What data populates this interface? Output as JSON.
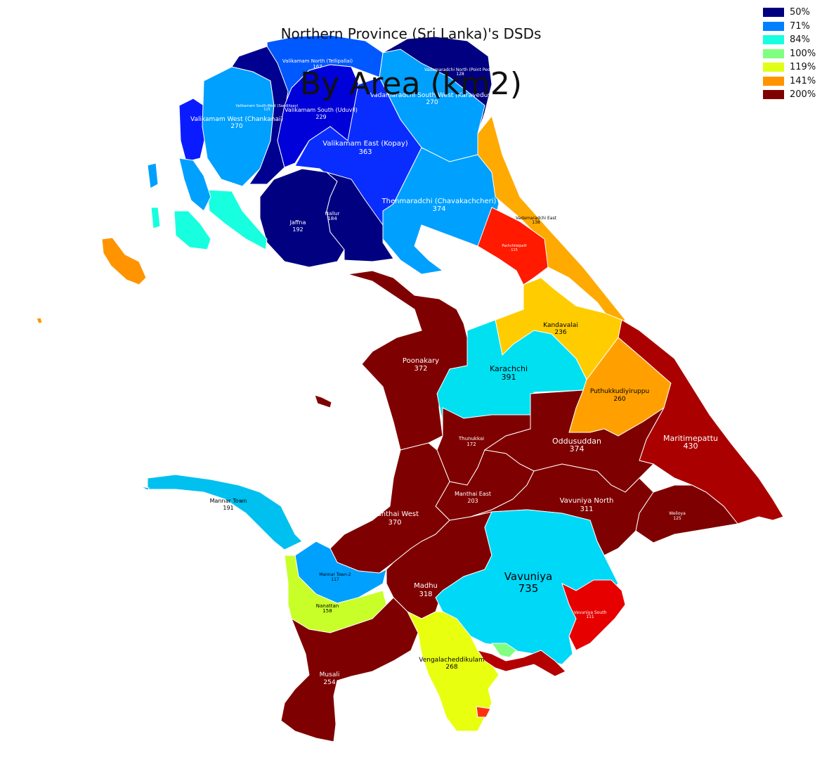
{
  "title": "Northern Province (Sri Lanka)'s DSDs",
  "subtitle": "By Area (km2)",
  "legend": [
    {
      "label": "50%",
      "color": "#00007f"
    },
    {
      "label": "71%",
      "color": "#0080ff"
    },
    {
      "label": "84%",
      "color": "#17ffdf"
    },
    {
      "label": "100%",
      "color": "#80ff80"
    },
    {
      "label": "119%",
      "color": "#dfff17"
    },
    {
      "label": "141%",
      "color": "#ff9400"
    },
    {
      "label": "200%",
      "color": "#7f0000"
    }
  ],
  "regions": [
    {
      "name": "Valikamam North (Tellipallai)",
      "value": "167"
    },
    {
      "name": "Vadamaradchi North (Point Pedro)",
      "value": "128"
    },
    {
      "name": "Vadamaradchi South-West (Karaveddy)",
      "value": "270"
    },
    {
      "name": "Valikamam South-West (Sandilipay)",
      "value": "125"
    },
    {
      "name": "Valikamam West (Chankanai)",
      "value": "270"
    },
    {
      "name": "Valikamam South (Uduvil)",
      "value": "229"
    },
    {
      "name": "Valikamam East (Kopay)",
      "value": "363"
    },
    {
      "name": "Thenmaradchi (Chavakachcheri)",
      "value": "374"
    },
    {
      "name": "Nallur",
      "value": "184"
    },
    {
      "name": "Jaffna",
      "value": "192"
    },
    {
      "name": "Vadamaradchi East",
      "value": "138"
    },
    {
      "name": "Pachchilaipalli",
      "value": "115"
    },
    {
      "name": "Kandavalai",
      "value": "236"
    },
    {
      "name": "Poonakary",
      "value": "372"
    },
    {
      "name": "Karachchi",
      "value": "391"
    },
    {
      "name": "Puthukkudiyiruppu",
      "value": "260"
    },
    {
      "name": "Thunukkai",
      "value": "172"
    },
    {
      "name": "Oddusuddan",
      "value": "374"
    },
    {
      "name": "Maritimepattu",
      "value": "430"
    },
    {
      "name": "Mannar Town",
      "value": "191"
    },
    {
      "name": "Manthai East",
      "value": "203"
    },
    {
      "name": "Manthai West",
      "value": "370"
    },
    {
      "name": "Vavuniya North",
      "value": "311"
    },
    {
      "name": "Welioya",
      "value": "125"
    },
    {
      "name": "Mannar Town-2",
      "value": "117"
    },
    {
      "name": "Madhu",
      "value": "318"
    },
    {
      "name": "Vavuniya",
      "value": "735"
    },
    {
      "name": "Vavuniya South",
      "value": "111"
    },
    {
      "name": "Nanattan",
      "value": "158"
    },
    {
      "name": "Vengalacheddikulam",
      "value": "268"
    },
    {
      "name": "Musali",
      "value": "254"
    }
  ]
}
